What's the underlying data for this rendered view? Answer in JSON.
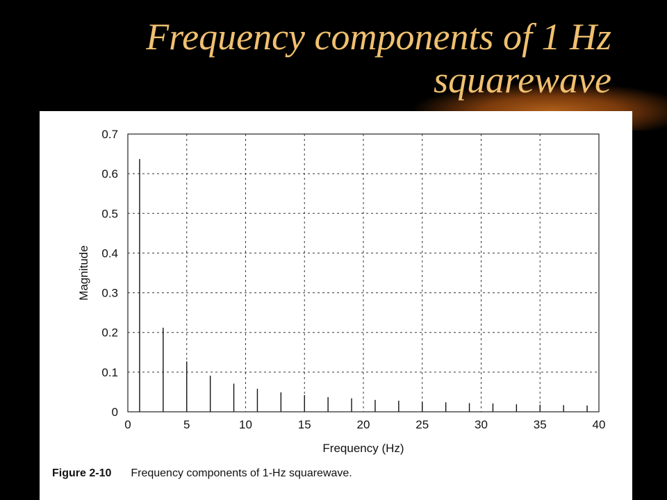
{
  "slide": {
    "title_line1": "Frequency components of 1 Hz",
    "title_line2": "squarewave"
  },
  "caption": {
    "label": "Figure 2-10",
    "text": "Frequency components of 1-Hz squarewave."
  },
  "chart_data": {
    "type": "bar",
    "xlabel": "Frequency (Hz)",
    "ylabel": "Magnitude",
    "xlim": [
      0,
      40
    ],
    "ylim": [
      0,
      0.7
    ],
    "xticks": [
      0,
      5,
      10,
      15,
      20,
      25,
      30,
      35,
      40
    ],
    "yticks": [
      0,
      0.1,
      0.2,
      0.3,
      0.4,
      0.5,
      0.6,
      0.7
    ],
    "grid": true,
    "x": [
      1,
      3,
      5,
      7,
      9,
      11,
      13,
      15,
      17,
      19,
      21,
      23,
      25,
      27,
      29,
      31,
      33,
      35,
      37,
      39
    ],
    "values": [
      0.637,
      0.212,
      0.127,
      0.091,
      0.071,
      0.058,
      0.049,
      0.042,
      0.037,
      0.034,
      0.03,
      0.028,
      0.025,
      0.024,
      0.022,
      0.021,
      0.019,
      0.018,
      0.017,
      0.016
    ]
  }
}
